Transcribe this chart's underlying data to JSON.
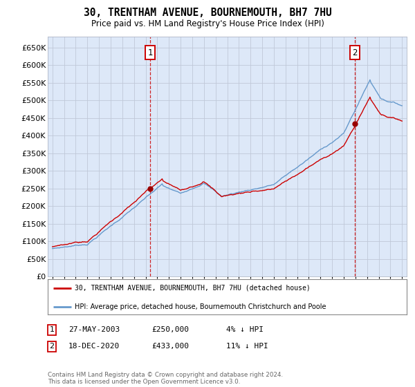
{
  "title": "30, TRENTHAM AVENUE, BOURNEMOUTH, BH7 7HU",
  "subtitle": "Price paid vs. HM Land Registry's House Price Index (HPI)",
  "legend_line1": "30, TRENTHAM AVENUE, BOURNEMOUTH, BH7 7HU (detached house)",
  "legend_line2": "HPI: Average price, detached house, Bournemouth Christchurch and Poole",
  "annotation1": {
    "label": "1",
    "date": "27-MAY-2003",
    "price": "£250,000",
    "pct": "4% ↓ HPI"
  },
  "annotation2": {
    "label": "2",
    "date": "18-DEC-2020",
    "price": "£433,000",
    "pct": "11% ↓ HPI"
  },
  "footer": "Contains HM Land Registry data © Crown copyright and database right 2024.\nThis data is licensed under the Open Government Licence v3.0.",
  "hpi_color": "#6699cc",
  "price_color": "#cc0000",
  "dot_color": "#990000",
  "background_chart": "#dde8f8",
  "grid_color": "#c0c8d8",
  "ylim": [
    0,
    680000
  ],
  "yticks": [
    0,
    50000,
    100000,
    150000,
    200000,
    250000,
    300000,
    350000,
    400000,
    450000,
    500000,
    550000,
    600000,
    650000
  ],
  "sale1_year": 2003.38,
  "sale1_price": 250000,
  "sale2_year": 2020.96,
  "sale2_price": 433000
}
